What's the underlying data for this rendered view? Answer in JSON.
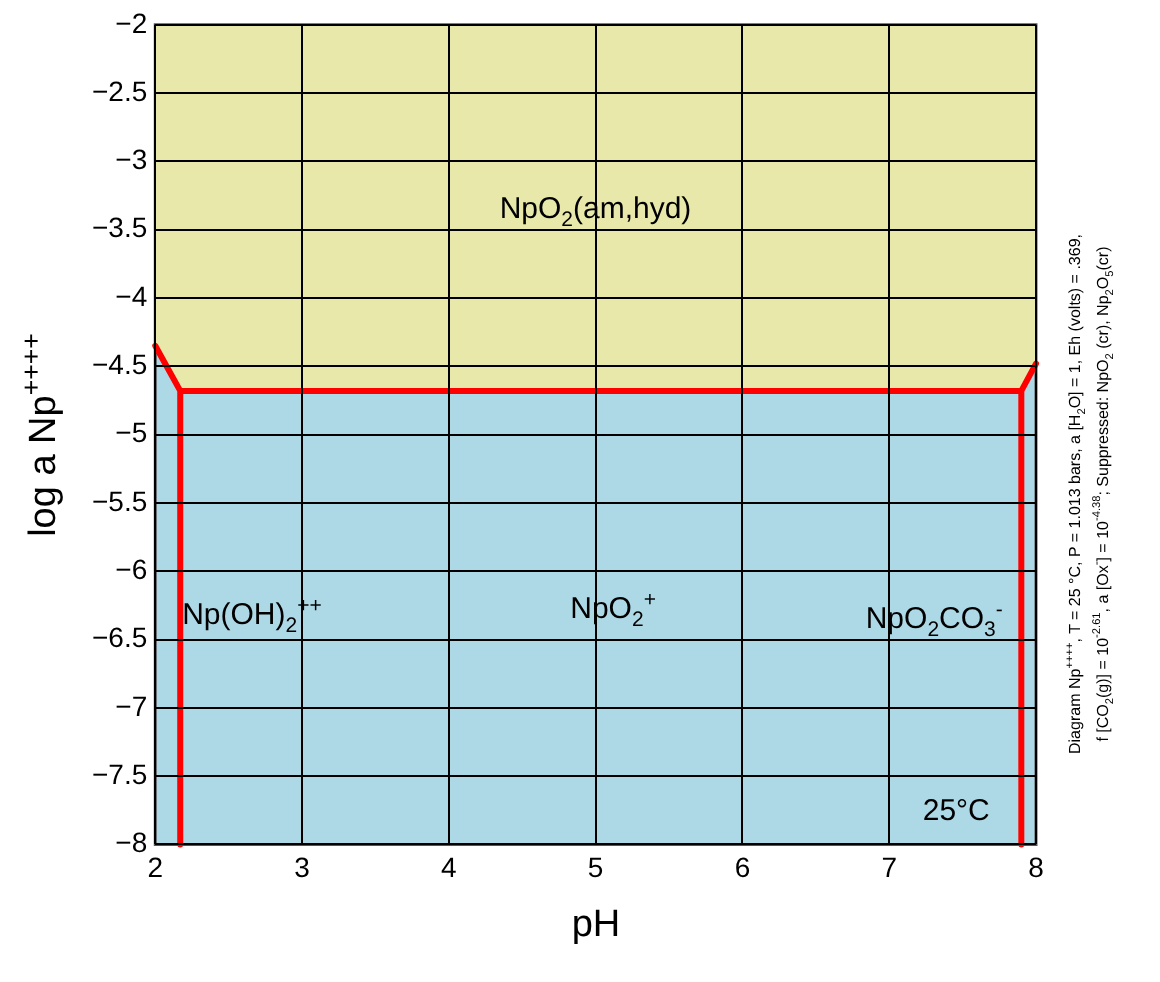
{
  "chart_data": {
    "type": "line",
    "xlabel": "pH",
    "ylabel": "log a Np$^{++++}$",
    "xlim": [
      2,
      8
    ],
    "xticks": [
      2,
      3,
      4,
      5,
      6,
      7,
      8
    ],
    "ylim": [
      -8,
      -2
    ],
    "yticks": [
      -8,
      -7.5,
      -7,
      -6.5,
      -6,
      -5.5,
      -5,
      -4.5,
      -4,
      -3.5,
      -3,
      -2.5,
      -2
    ],
    "grid": true,
    "legend": false,
    "marker": "none",
    "line_style": "solid",
    "series": [
      {
        "type": "area",
        "color": "#e8e8aa",
        "x": [
          2,
          2.17,
          7.9,
          8
        ],
        "values": [
          -4.35,
          -4.68,
          -4.68,
          -4.48
        ]
      },
      {
        "color": "#ff0000",
        "x": [
          2,
          2.17,
          2.17,
          2.17,
          7.9,
          7.9,
          7.9,
          8
        ],
        "values": [
          -4.35,
          -4.68,
          -8,
          -4.68,
          -4.68,
          -8,
          -4.68,
          -4.48
        ]
      }
    ],
    "annotations": [
      "NpO$_{2}$(am,hyd)",
      "Np(OH)$_{2}$$^{++}$",
      "NpO$_{2}$$^{+}$",
      "NpO$_{2}$CO$_{3}$$^{-}$",
      "25°C",
      "Diagram Np$^{++++}$, T = 25 °C, P = 1.013 bars, a [H$_{2}$O] = 1, Eh (volts) = .369,",
      "f [CO$_{2}$(g)] = 10$^{-2.61}$, a [Ox$^{-}$] = 10$^{-4.38}$; Suppressed: NpO$_{2}$ (cr), Np$_{2}$O$_{5}$(cr)"
    ]
  }
}
